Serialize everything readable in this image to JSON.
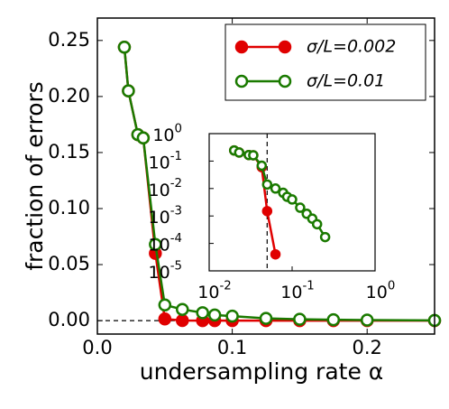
{
  "chart_data": {
    "type": "line",
    "xlabel": "undersampling rate α",
    "ylabel": "fraction of errors",
    "x": [
      0.02,
      0.023,
      0.03,
      0.034,
      0.043,
      0.05,
      0.063,
      0.078,
      0.087,
      0.1,
      0.125,
      0.15,
      0.175,
      0.2,
      0.25
    ],
    "series": [
      {
        "name": "σ/L=0.002",
        "color": "#e00000",
        "marker_fill": "#e00000",
        "values": [
          0.244,
          0.205,
          0.166,
          0.163,
          0.06,
          0.0015,
          4e-05,
          0,
          0,
          0,
          0,
          0,
          0,
          0,
          0
        ]
      },
      {
        "name": "σ/L=0.01",
        "color": "#1a7a00",
        "marker_fill": "none",
        "values": [
          0.244,
          0.205,
          0.166,
          0.163,
          0.068,
          0.014,
          0.01,
          0.007,
          0.005,
          0.004,
          0.002,
          0.0012,
          0.0008,
          0.0005,
          0.00017
        ]
      }
    ],
    "xlim": [
      0,
      0.25
    ],
    "xticks": [
      {
        "value": 0,
        "label": "0.0"
      },
      0.1,
      0.2
    ],
    "ylim": [
      -0.012,
      0.27
    ],
    "yticks": [
      {
        "value": 0,
        "label": "0.00"
      },
      0.05,
      {
        "value": 0.1,
        "label": "0.10"
      },
      0.15,
      {
        "value": 0.2,
        "label": "0.20"
      },
      0.25
    ],
    "hline": 0,
    "legend": "upper right",
    "inset": {
      "log": true,
      "xlim": [
        0.01,
        1
      ],
      "ylim": [
        1e-05,
        1
      ],
      "xticks": [
        {
          "value": 0.01,
          "label": "10^-2"
        },
        {
          "value": 0.1,
          "label": "10^-1"
        },
        {
          "value": 1,
          "label": "10^0"
        }
      ],
      "yticks": [
        {
          "value": 1e-05,
          "label": "10^-5"
        },
        {
          "value": 0.0001,
          "label": "10^-4"
        },
        {
          "value": 0.001,
          "label": "10^-3"
        },
        {
          "value": 0.01,
          "label": "10^-2"
        },
        {
          "value": 0.1,
          "label": "10^-1"
        },
        {
          "value": 1,
          "label": "10^0"
        }
      ],
      "vline": 0.05
    }
  }
}
